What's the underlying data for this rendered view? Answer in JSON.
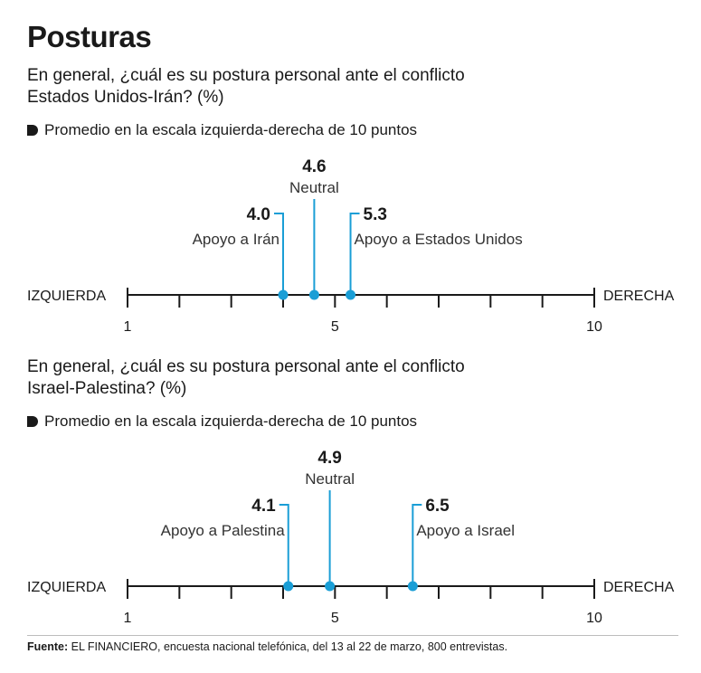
{
  "title": "Posturas",
  "source_label": "Fuente:",
  "source_text": "EL FINANCIERO, encuesta nacional telefónica, del 13 al 22 de marzo, 800 entrevistas.",
  "colors": {
    "accent": "#1a9ed6",
    "axis": "#1a1a1a"
  },
  "chart_data": [
    {
      "type": "scale",
      "question_line1": "En general, ¿cuál es su postura personal ante el conflicto",
      "question_line2": "Estados Unidos-Irán? (%)",
      "subtitle": "Promedio en la escala izquierda-derecha de 10 puntos",
      "left_label": "IZQUIERDA",
      "right_label": "DERECHA",
      "xlim": [
        1,
        10
      ],
      "tick_labels": [
        {
          "value": 1,
          "label": "1"
        },
        {
          "value": 5,
          "label": "5"
        },
        {
          "value": 10,
          "label": "10"
        }
      ],
      "points": [
        {
          "value": 4.0,
          "label": "4.0",
          "name": "Apoyo a Irán",
          "side": "left"
        },
        {
          "value": 4.6,
          "label": "4.6",
          "name": "Neutral",
          "side": "center"
        },
        {
          "value": 5.3,
          "label": "5.3",
          "name": "Apoyo a Estados Unidos",
          "side": "right"
        }
      ]
    },
    {
      "type": "scale",
      "question_line1": "En general, ¿cuál es su postura personal ante el conflicto",
      "question_line2": "Israel-Palestina? (%)",
      "subtitle": "Promedio en la escala izquierda-derecha de 10 puntos",
      "left_label": "IZQUIERDA",
      "right_label": "DERECHA",
      "xlim": [
        1,
        10
      ],
      "tick_labels": [
        {
          "value": 1,
          "label": "1"
        },
        {
          "value": 5,
          "label": "5"
        },
        {
          "value": 10,
          "label": "10"
        }
      ],
      "points": [
        {
          "value": 4.1,
          "label": "4.1",
          "name": "Apoyo a Palestina",
          "side": "left"
        },
        {
          "value": 4.9,
          "label": "4.9",
          "name": "Neutral",
          "side": "center"
        },
        {
          "value": 6.5,
          "label": "6.5",
          "name": "Apoyo a Israel",
          "side": "right"
        }
      ]
    }
  ]
}
